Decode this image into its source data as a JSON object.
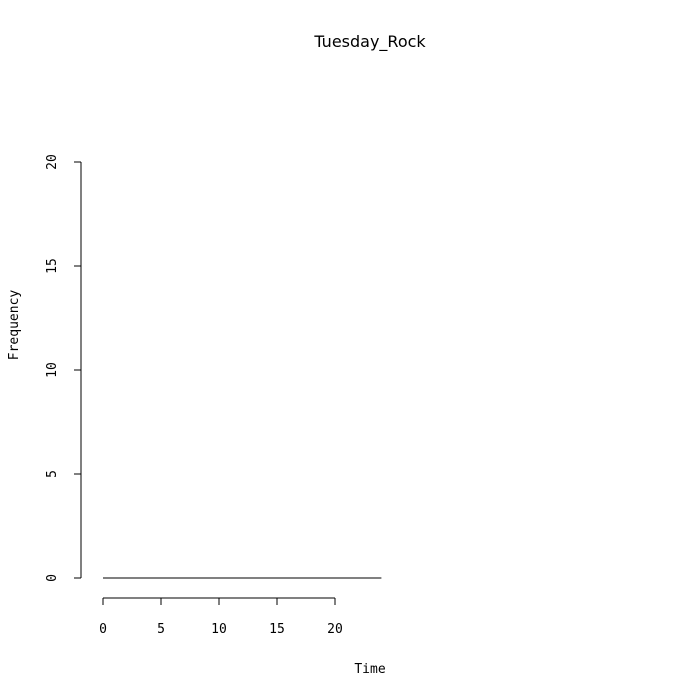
{
  "chart_data": {
    "type": "line",
    "title": "Tuesday_Rock",
    "xlabel": "Time",
    "ylabel": "Frequency",
    "xlim": [
      0,
      24
    ],
    "ylim": [
      0,
      20
    ],
    "x_ticks": [
      0,
      5,
      10,
      15,
      20
    ],
    "y_ticks": [
      0,
      5,
      10,
      15,
      20
    ],
    "series": [
      {
        "x": [
          0,
          24
        ],
        "y": [
          0,
          0
        ]
      }
    ],
    "colors": {
      "line": "#000000",
      "axis": "#000000",
      "background": "#ffffff"
    },
    "grid": false
  }
}
